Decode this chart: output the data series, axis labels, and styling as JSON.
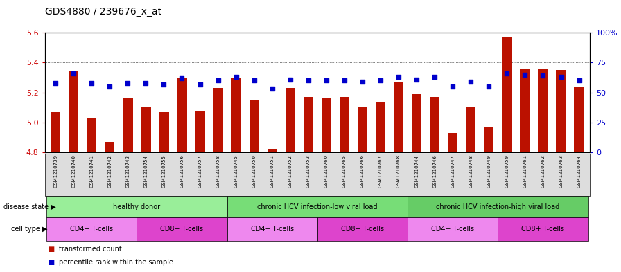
{
  "title": "GDS4880 / 239676_x_at",
  "samples": [
    "GSM1210739",
    "GSM1210740",
    "GSM1210741",
    "GSM1210742",
    "GSM1210743",
    "GSM1210754",
    "GSM1210755",
    "GSM1210756",
    "GSM1210757",
    "GSM1210758",
    "GSM1210745",
    "GSM1210750",
    "GSM1210751",
    "GSM1210752",
    "GSM1210753",
    "GSM1210760",
    "GSM1210765",
    "GSM1210766",
    "GSM1210767",
    "GSM1210768",
    "GSM1210744",
    "GSM1210746",
    "GSM1210747",
    "GSM1210748",
    "GSM1210749",
    "GSM1210759",
    "GSM1210761",
    "GSM1210762",
    "GSM1210763",
    "GSM1210764"
  ],
  "transformed_count": [
    5.07,
    5.34,
    5.03,
    4.87,
    5.16,
    5.1,
    5.07,
    5.3,
    5.08,
    5.23,
    5.3,
    5.15,
    4.82,
    5.23,
    5.17,
    5.16,
    5.17,
    5.1,
    5.14,
    5.27,
    5.19,
    5.17,
    4.93,
    5.1,
    4.97,
    5.57,
    5.36,
    5.36,
    5.35,
    5.24
  ],
  "percentile_rank": [
    58,
    66,
    58,
    55,
    58,
    58,
    57,
    62,
    57,
    60,
    63,
    60,
    53,
    61,
    60,
    60,
    60,
    59,
    60,
    63,
    61,
    63,
    55,
    59,
    55,
    66,
    65,
    64,
    63,
    60
  ],
  "ylim_left": [
    4.8,
    5.6
  ],
  "ylim_right": [
    0,
    100
  ],
  "bar_color": "#bb1100",
  "dot_color": "#0000cc",
  "bar_baseline": 4.8,
  "disease_groups": [
    {
      "label": "healthy donor",
      "start": 0,
      "end": 10,
      "color": "#99ee99"
    },
    {
      "label": "chronic HCV infection-low viral load",
      "start": 10,
      "end": 20,
      "color": "#77dd77"
    },
    {
      "label": "chronic HCV infection-high viral load",
      "start": 20,
      "end": 30,
      "color": "#66cc66"
    }
  ],
  "cell_type_groups": [
    {
      "label": "CD4+ T-cells",
      "start": 0,
      "end": 5,
      "color": "#ee88ee"
    },
    {
      "label": "CD8+ T-cells",
      "start": 5,
      "end": 10,
      "color": "#dd44cc"
    },
    {
      "label": "CD4+ T-cells",
      "start": 10,
      "end": 15,
      "color": "#ee88ee"
    },
    {
      "label": "CD8+ T-cells",
      "start": 15,
      "end": 20,
      "color": "#dd44cc"
    },
    {
      "label": "CD4+ T-cells",
      "start": 20,
      "end": 25,
      "color": "#ee88ee"
    },
    {
      "label": "CD8+ T-cells",
      "start": 25,
      "end": 30,
      "color": "#dd44cc"
    }
  ],
  "background_color": "#ffffff",
  "plot_bg": "#ffffff",
  "xticklabel_bg": "#dddddd",
  "tick_color_left": "#cc0000",
  "tick_color_right": "#0000cc",
  "grid_yticks": [
    5.0,
    5.2,
    5.4
  ],
  "left_yticks": [
    4.8,
    5.0,
    5.2,
    5.4,
    5.6
  ],
  "right_yticks": [
    0,
    25,
    50,
    75,
    100
  ],
  "right_yticklabels": [
    "0",
    "25",
    "50",
    "75",
    "100%"
  ]
}
